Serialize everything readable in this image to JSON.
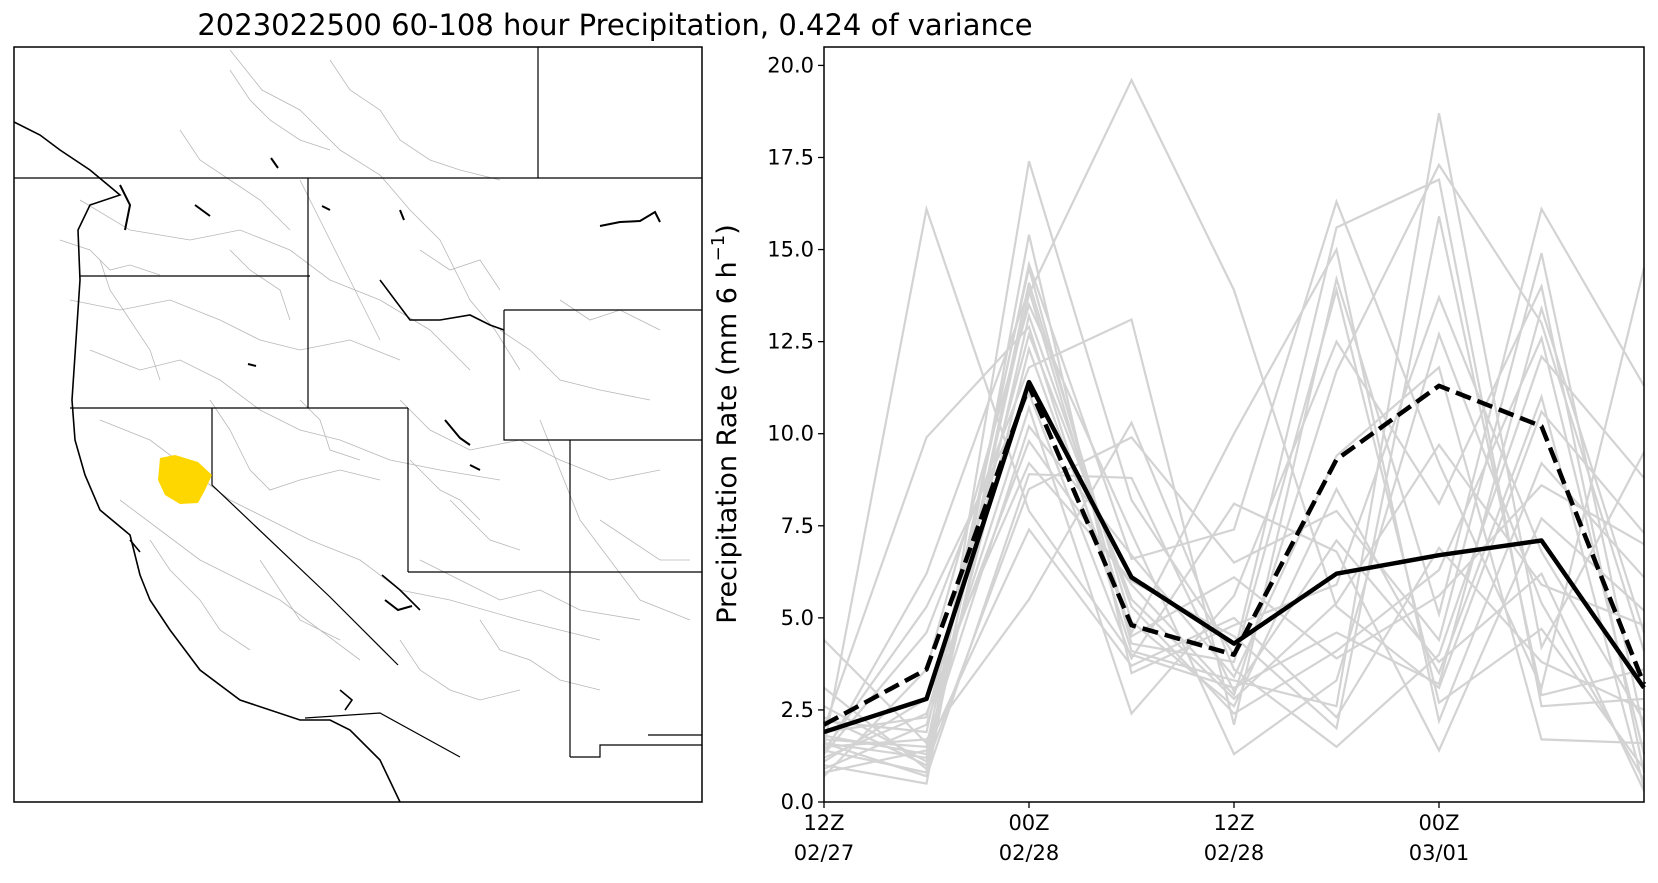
{
  "figure_title": "2023022500 60-108 hour Precipitation, 0.424 of variance",
  "map": {
    "highlight_color": "#FFD700",
    "state_line_color": "#000000",
    "basin_line_color": "#b8b8b8"
  },
  "chart_data": {
    "type": "line",
    "xlabel": "",
    "ylabel_main": "Precipitation Rate (mm 6 h",
    "ylabel_sup": "−1",
    "ylabel_end": ")",
    "ylim": [
      0,
      20.5
    ],
    "yticks": [
      0.0,
      2.5,
      5.0,
      7.5,
      10.0,
      12.5,
      15.0,
      17.5,
      20.0
    ],
    "ytick_labels": [
      "0.0",
      "2.5",
      "5.0",
      "7.5",
      "10.0",
      "12.5",
      "15.0",
      "17.5",
      "20.0"
    ],
    "x_labels": [
      {
        "time": "12Z",
        "date": "02/27"
      },
      {
        "time": "00Z",
        "date": "02/28"
      },
      {
        "time": "12Z",
        "date": "02/28"
      },
      {
        "time": "00Z",
        "date": "03/01"
      }
    ],
    "x_tick_index": [
      0,
      2,
      4,
      6
    ],
    "n_points": 9,
    "grid": false,
    "colors": {
      "ensemble": "#d3d3d3",
      "solid": "#000000",
      "dashed": "#000000"
    },
    "series": [
      {
        "style": "solid",
        "values": [
          1.9,
          2.8,
          11.4,
          6.1,
          4.3,
          6.2,
          6.7,
          7.1,
          3.1
        ]
      },
      {
        "style": "dashed",
        "values": [
          2.1,
          3.6,
          11.3,
          4.8,
          4.0,
          9.3,
          11.3,
          10.2,
          3.2
        ]
      },
      {
        "style": "ensemble",
        "values": [
          1.5,
          16.1,
          7.9,
          4.0,
          3.1,
          4.6,
          3.2,
          13.4,
          4.6
        ]
      },
      {
        "style": "ensemble",
        "values": [
          1.6,
          1.2,
          13.8,
          19.6,
          13.9,
          5.3,
          3.1,
          10.6,
          7.3
        ]
      },
      {
        "style": "ensemble",
        "values": [
          1.4,
          0.8,
          17.4,
          8.2,
          4.0,
          15.6,
          16.9,
          2.6,
          2.8
        ]
      },
      {
        "style": "ensemble",
        "values": [
          2.0,
          9.9,
          12.9,
          4.1,
          3.3,
          2.6,
          18.7,
          4.2,
          9.5
        ]
      },
      {
        "style": "ensemble",
        "values": [
          1.3,
          4.6,
          11.8,
          13.1,
          2.1,
          14.2,
          5.1,
          16.1,
          11.3
        ]
      },
      {
        "style": "ensemble",
        "values": [
          1.7,
          1.5,
          14.6,
          6.6,
          7.4,
          16.3,
          9.2,
          3.1,
          14.5
        ]
      },
      {
        "style": "ensemble",
        "values": [
          1.2,
          2.4,
          9.8,
          5.9,
          2.9,
          11.7,
          17.3,
          13.0,
          4.1
        ]
      },
      {
        "style": "ensemble",
        "values": [
          2.3,
          1.0,
          8.5,
          9.9,
          6.5,
          7.9,
          4.4,
          14.9,
          1.9
        ]
      },
      {
        "style": "ensemble",
        "values": [
          1.0,
          0.5,
          15.4,
          3.5,
          4.8,
          5.9,
          13.7,
          6.8,
          2.2
        ]
      },
      {
        "style": "ensemble",
        "values": [
          0.9,
          2.1,
          10.7,
          2.4,
          5.6,
          12.5,
          8.1,
          14.0,
          0.8
        ]
      },
      {
        "style": "ensemble",
        "values": [
          1.8,
          1.3,
          12.3,
          4.6,
          10.0,
          15.0,
          2.2,
          9.2,
          6.1
        ]
      },
      {
        "style": "ensemble",
        "values": [
          0.7,
          3.6,
          13.5,
          7.3,
          1.3,
          3.3,
          12.7,
          5.4,
          0.6
        ]
      },
      {
        "style": "ensemble",
        "values": [
          1.5,
          1.7,
          5.5,
          10.3,
          3.6,
          1.5,
          4.0,
          12.1,
          8.8
        ]
      },
      {
        "style": "ensemble",
        "values": [
          2.6,
          1.1,
          14.1,
          4.9,
          2.6,
          8.5,
          3.5,
          11.0,
          0.4
        ]
      },
      {
        "style": "ensemble",
        "values": [
          1.1,
          2.8,
          9.2,
          6.0,
          4.5,
          2.0,
          15.9,
          2.9,
          3.6
        ]
      },
      {
        "style": "ensemble",
        "values": [
          3.1,
          0.9,
          13.2,
          5.3,
          2.4,
          4.1,
          6.3,
          12.6,
          1.3
        ]
      },
      {
        "style": "ensemble",
        "values": [
          1.4,
          5.3,
          11.1,
          3.9,
          8.1,
          6.8,
          1.4,
          7.7,
          5.2
        ]
      },
      {
        "style": "ensemble",
        "values": [
          2.2,
          1.9,
          14.5,
          4.3,
          3.8,
          13.9,
          2.7,
          4.7,
          0.9
        ]
      },
      {
        "style": "ensemble",
        "values": [
          0.8,
          1.4,
          7.4,
          3.7,
          5.0,
          2.3,
          6.9,
          3.8,
          2.5
        ]
      },
      {
        "style": "ensemble",
        "values": [
          1.9,
          2.3,
          12.7,
          5.5,
          2.8,
          5.4,
          9.7,
          5.9,
          4.8
        ]
      },
      {
        "style": "ensemble",
        "values": [
          4.4,
          1.6,
          10.2,
          6.7,
          3.4,
          9.4,
          11.8,
          1.7,
          1.6
        ]
      },
      {
        "style": "ensemble",
        "values": [
          1.3,
          6.2,
          13.9,
          4.5,
          6.1,
          3.9,
          5.6,
          8.6,
          7.0
        ]
      },
      {
        "style": "ensemble",
        "values": [
          1.6,
          0.7,
          8.9,
          8.8,
          3.0,
          7.1,
          3.8,
          6.2,
          0.3
        ]
      }
    ]
  }
}
